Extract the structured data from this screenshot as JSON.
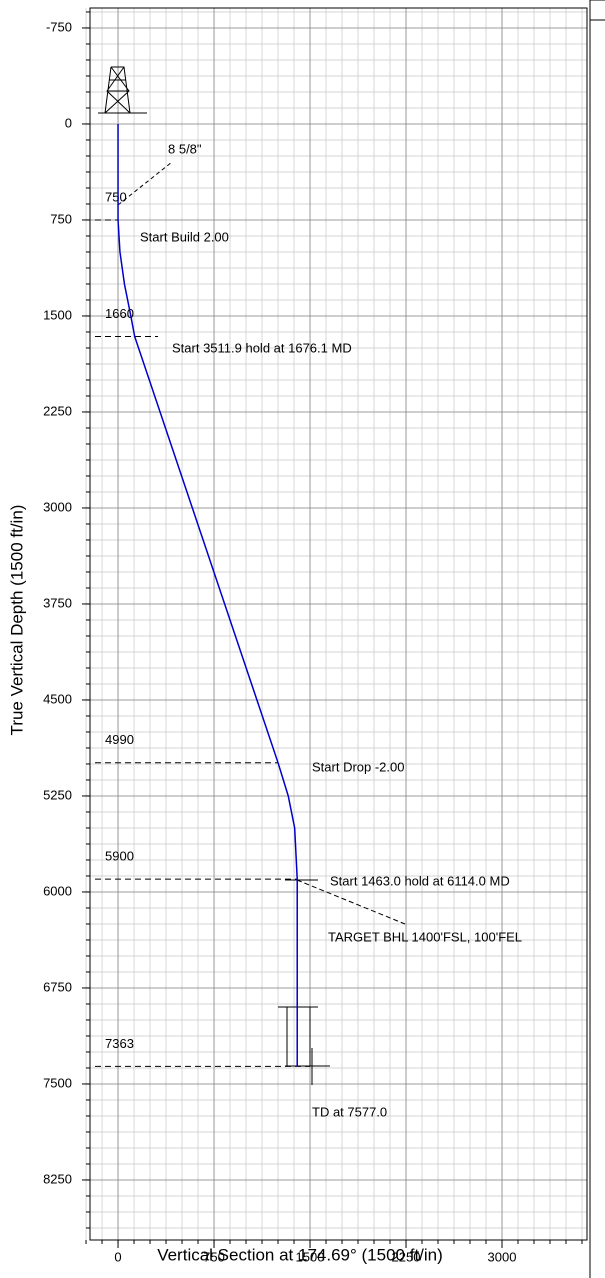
{
  "chart_data": {
    "type": "line",
    "xlabel": "Vertical Section at 174.69° (1500 ft/in)",
    "ylabel": "True Vertical Depth (1500 ft/in)",
    "x": [
      0,
      0,
      15,
      50,
      100,
      130,
      1250,
      1330,
      1380,
      1400,
      1400
    ],
    "values": [
      0,
      750,
      1000,
      1250,
      1500,
      1660,
      4990,
      5250,
      5500,
      5900,
      7363
    ],
    "color": "#0000cc",
    "xlim": [
      -219,
      3664
    ],
    "ylim": [
      8719,
      -906
    ],
    "xticks": [
      0,
      750,
      1500,
      2250,
      3000
    ],
    "yticks": [
      -750,
      0,
      750,
      1500,
      2250,
      3000,
      3750,
      4500,
      5250,
      6000,
      6750,
      7500,
      8250
    ],
    "grid": true,
    "depth_markers": [
      750,
      1660,
      4990,
      5900,
      7363
    ],
    "annotations": [
      "8 5/8\"",
      "Start Build 2.00",
      "Start 3511.9 hold at 1676.1 MD",
      "Start Drop -2.00",
      "Start 1463.0 hold at 6114.0 MD",
      "TARGET BHL 1400'FSL, 100'FEL",
      "TD at 7577.0"
    ]
  }
}
